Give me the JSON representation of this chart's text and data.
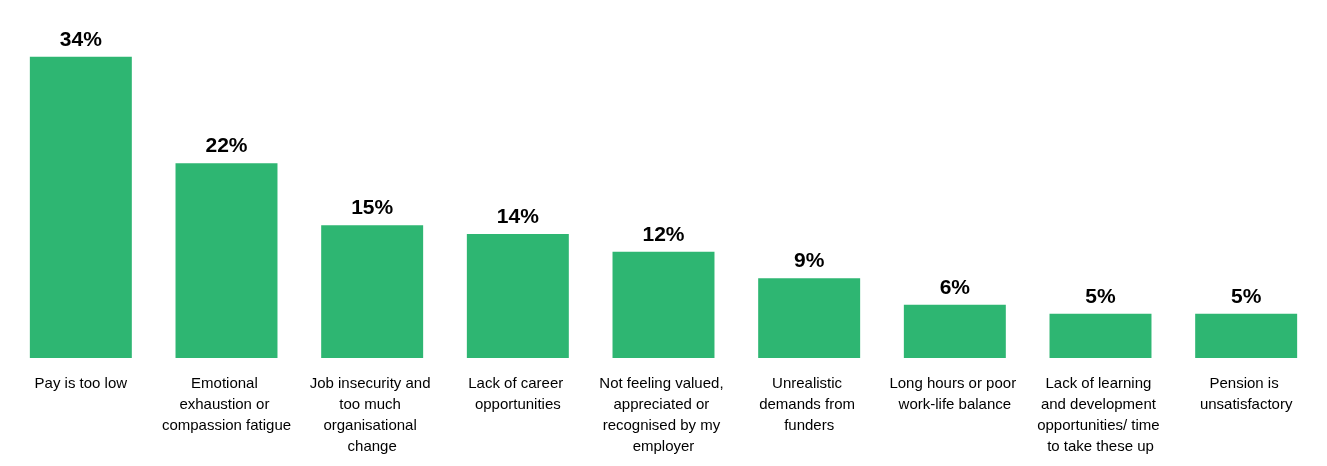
{
  "chart_data": {
    "type": "bar",
    "categories": [
      "Pay is too low",
      "Emotional exhaustion or compassion fatigue",
      "Job insecurity and too much organisational change",
      "Lack of career opportunities",
      "Not feeling valued, appreciated or recognised by my employer",
      "Unrealistic demands from funders",
      "Long hours or poor work-life balance",
      "Lack of learning and development opportunities/ time to take these up",
      "Pension is unsatisfactory"
    ],
    "values": [
      34,
      22,
      15,
      14,
      12,
      9,
      6,
      5,
      5
    ],
    "value_labels": [
      "34%",
      "22%",
      "15%",
      "14%",
      "12%",
      "9%",
      "6%",
      "5%",
      "5%"
    ],
    "color": "#2eb672"
  }
}
